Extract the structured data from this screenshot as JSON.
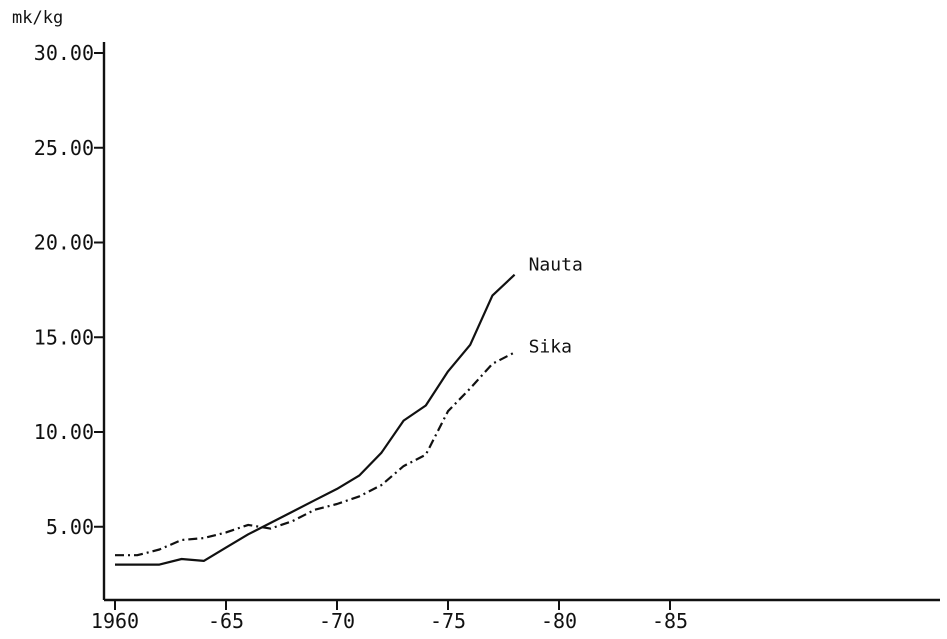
{
  "chart_data": {
    "type": "line",
    "ylabel": "mk/kg",
    "x_tick_labels": [
      "1960",
      "-65",
      "-70",
      "-75",
      "-80",
      "-85"
    ],
    "x_ticks": [
      1960,
      1965,
      1970,
      1975,
      1980,
      1985
    ],
    "y_tick_labels": [
      "5.00",
      "10.00",
      "15.00",
      "20.00",
      "25.00",
      "30.00"
    ],
    "y_ticks": [
      5,
      10,
      15,
      20,
      25,
      30
    ],
    "xlim": [
      1960,
      1986
    ],
    "ylim": [
      0,
      30
    ],
    "grid": false,
    "series": [
      {
        "name": "Nauta",
        "style": "solid",
        "color": "#111111",
        "x": [
          1960,
          1961,
          1962,
          1963,
          1964,
          1965,
          1966,
          1967,
          1968,
          1969,
          1970,
          1971,
          1972,
          1973,
          1974,
          1975,
          1976,
          1977,
          1978
        ],
        "values": [
          3.0,
          3.0,
          3.0,
          3.3,
          3.2,
          3.9,
          4.6,
          5.2,
          5.8,
          6.4,
          7.0,
          7.7,
          8.9,
          10.6,
          11.4,
          13.2,
          14.6,
          17.2,
          18.3
        ]
      },
      {
        "name": "Sika",
        "style": "dash-dot",
        "color": "#111111",
        "x": [
          1960,
          1961,
          1962,
          1963,
          1964,
          1965,
          1966,
          1967,
          1968,
          1969,
          1970,
          1971,
          1972,
          1973,
          1974,
          1975,
          1976,
          1977,
          1978
        ],
        "values": [
          3.5,
          3.5,
          3.8,
          4.3,
          4.4,
          4.7,
          5.1,
          4.9,
          5.3,
          5.9,
          6.2,
          6.6,
          7.2,
          8.2,
          8.8,
          11.1,
          12.3,
          13.6,
          14.2
        ]
      }
    ]
  }
}
